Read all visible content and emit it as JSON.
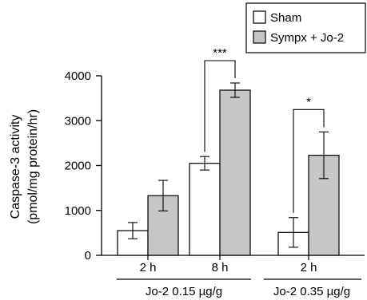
{
  "chart_data": {
    "type": "bar",
    "ylabel_line1": "Caspase-3 activity",
    "ylabel_line2": "(pmol/mg protein/hr)",
    "ylim": [
      0,
      4000
    ],
    "yticks": [
      "0",
      "1000",
      "2000",
      "3000",
      "4000"
    ],
    "ytick_values": [
      0,
      1000,
      2000,
      3000,
      4000
    ],
    "groups": [
      {
        "label": "2 h",
        "sham": 550,
        "sham_err": 180,
        "sympx": 1330,
        "sympx_err": 340,
        "significance": ""
      },
      {
        "label": "8 h",
        "sham": 2050,
        "sham_err": 150,
        "sympx": 3680,
        "sympx_err": 160,
        "significance": "***"
      },
      {
        "label": "2 h",
        "sham": 510,
        "sham_err": 330,
        "sympx": 2230,
        "sympx_err": 520,
        "significance": "*"
      }
    ],
    "dose_labels": [
      "Jo-2 0.15 µg/g",
      "Jo-2 0.35 µg/g"
    ],
    "series": [
      {
        "name": "Sham",
        "color": "#ffffff"
      },
      {
        "name": "Sympx + Jo-2",
        "color": "#c6c6c6"
      }
    ],
    "legend_position": "top-right"
  }
}
